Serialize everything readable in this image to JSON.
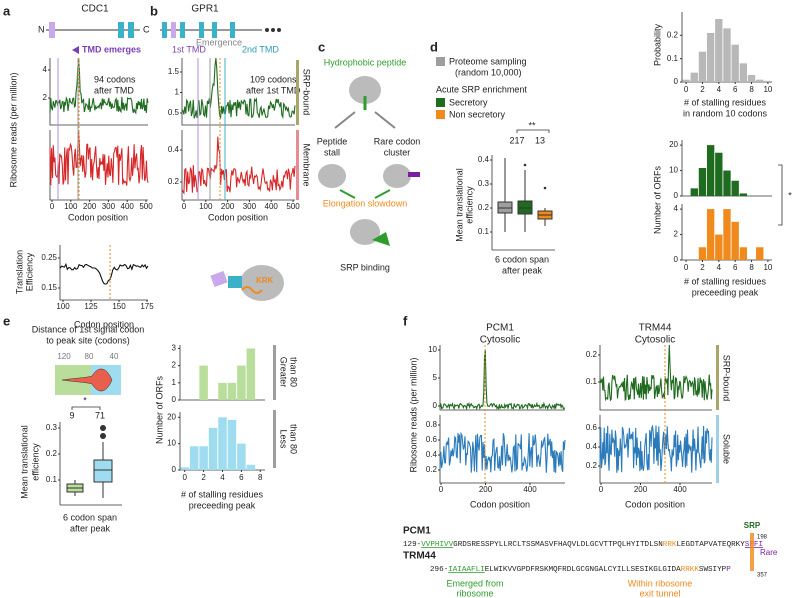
{
  "figure": {
    "a": {
      "label": "a",
      "gene": "CDC1",
      "n": "N",
      "c": "C",
      "arrow": "TMD emerges",
      "note": [
        "94 codons",
        "after TMD"
      ],
      "y_label": "Ribosome reads (per million)",
      "reads_yticks": [
        4,
        2
      ],
      "xticks": [
        0,
        100,
        200,
        300,
        400,
        500
      ],
      "x_label": "Codon position",
      "te_label": [
        "Translation",
        "Efficiency"
      ],
      "te_yticks": [
        0.25,
        0.15
      ],
      "te_xticks": [
        100,
        125,
        150,
        175
      ],
      "te_x_label": "Codon position"
    },
    "b": {
      "label": "b",
      "gene": "GPR1",
      "tmd1": "1st TMD",
      "emergence": "Emergence",
      "tmd2": "2nd TMD",
      "note": [
        "109 codons",
        "after 1st TMD"
      ],
      "srp_yticks": [
        1.5,
        1,
        0.5
      ],
      "mem_yticks": [
        0.4,
        0.2
      ],
      "xticks": [
        0,
        100,
        200,
        300,
        400,
        500
      ],
      "x_label": "Codon position",
      "side": [
        "SRP-bound",
        "Membrane"
      ],
      "motif": "KRK"
    },
    "c": {
      "label": "c",
      "top": "Hydrophobic peptide",
      "stall": [
        "Peptide",
        "stall"
      ],
      "rare": [
        "Rare codon",
        "cluster"
      ],
      "slow": "Elongation slowdown",
      "srp": "SRP binding"
    },
    "d": {
      "label": "d",
      "legend": [
        "Proteome sampling",
        "(random 10,000)"
      ],
      "enrich": "Acute SRP enrichment",
      "secretory": "Secretory",
      "nonsecretory": "Non secretory",
      "box_yticks": [
        0.4,
        0.3,
        0.2,
        0.1
      ],
      "box_ylabel": [
        "Mean translational",
        "efficiency"
      ],
      "counts": [
        "217",
        "13"
      ],
      "sig": "**",
      "box_xlabel": [
        "6 codon span",
        "after peak"
      ],
      "prob": {
        "x": [
          0,
          1,
          2,
          3,
          4,
          5,
          6,
          7,
          8,
          9,
          10
        ],
        "values": [
          0.01,
          0.04,
          0.13,
          0.21,
          0.27,
          0.23,
          0.16,
          0.08,
          0.03,
          0.01,
          0.005
        ],
        "xlim": [
          -0.5,
          10.5
        ],
        "ylim": [
          0,
          0.3
        ],
        "yticks": [
          0.2,
          0.1,
          0
        ],
        "xticks": [
          0,
          2,
          4,
          6,
          8,
          10
        ],
        "ylabel": "Probability",
        "xlabel": [
          "# of stalling residues",
          "in random 10 codons"
        ]
      },
      "sec": {
        "x": [
          0,
          1,
          2,
          3,
          4,
          5,
          6,
          7,
          8,
          9,
          10
        ],
        "values": [
          0,
          3,
          11,
          20,
          17,
          10,
          6,
          1,
          0,
          0,
          0
        ],
        "xlim": [
          -0.5,
          10.5
        ],
        "ylim": [
          0,
          22
        ],
        "yticks": [
          20,
          10,
          0
        ]
      },
      "non": {
        "x": [
          0,
          1,
          2,
          3,
          4,
          5,
          6,
          7,
          8,
          9,
          10
        ],
        "values": [
          0,
          0,
          1,
          4,
          2,
          4,
          3,
          1,
          0,
          1,
          0
        ],
        "xlim": [
          -0.5,
          10.5
        ],
        "ylim": [
          0,
          4.4
        ],
        "yticks": [
          4,
          2,
          0
        ],
        "xticks": [
          0,
          2,
          4,
          6,
          8,
          10
        ]
      },
      "hist_ylabel": "Number of ORFs",
      "hist_xlabel": [
        "# of stalling residues",
        "preceeding peak"
      ],
      "hist_sig": "*"
    },
    "e": {
      "label": "e",
      "title": [
        "Distance of 1st signal codon",
        "to peak site (codons)"
      ],
      "dist_ticks": [
        120,
        80,
        40
      ],
      "counts": [
        "9",
        "71"
      ],
      "sig": "*",
      "box_yticks": [
        0.3,
        0.2,
        0.1
      ],
      "box_ylabel": [
        "Mean translational",
        "efficiency"
      ],
      "box_xlabel": [
        "6 codon span",
        "after peak"
      ],
      "greater": {
        "x": [
          1,
          2,
          3,
          4,
          5,
          6,
          7
        ],
        "values": [
          0,
          2,
          0,
          1,
          1,
          2,
          3
        ],
        "xlim": [
          -0.5,
          8.5
        ],
        "ylim": [
          0,
          3.2
        ],
        "yticks": [
          3,
          2,
          1,
          0
        ]
      },
      "less": {
        "x": [
          0,
          1,
          2,
          3,
          4,
          5,
          6,
          7
        ],
        "values": [
          1,
          9,
          9,
          16,
          20,
          19,
          10,
          2
        ],
        "xlim": [
          -0.5,
          8.5
        ],
        "ylim": [
          0,
          22
        ],
        "yticks": [
          20,
          10,
          0
        ],
        "xticks": [
          0,
          2,
          4,
          6,
          8
        ]
      },
      "hist_ylabel": "Number of ORFs",
      "hist_xlabel": [
        "# of stalling residues",
        "preceeding peak"
      ],
      "side_greater": [
        "Greater",
        "than 80"
      ],
      "side_less": [
        "Less",
        "than 80"
      ]
    },
    "f": {
      "label": "f",
      "pcm1": [
        "PCM1",
        "Cytosolic"
      ],
      "trm44": [
        "TRM44",
        "Cytosolic"
      ],
      "y_label": "Ribosome reads (per million)",
      "pcm1_srp_yticks": [
        10,
        5,
        0
      ],
      "pcm1_sol_yticks": [
        0.8,
        0.6,
        0.4,
        0.2
      ],
      "trm44_srp_yticks": [
        0.2,
        0.1
      ],
      "trm44_sol_yticks": [
        0.6,
        0.4,
        0.2
      ],
      "xticks": [
        0,
        200,
        400
      ],
      "x_label": "Codon position",
      "side": [
        "SRP-bound",
        "Soluble"
      ],
      "seq_names": [
        "PCM1",
        "TRM44"
      ],
      "pcm1_seq": [
        "129-",
        "VVPHIVV",
        "GRDSRESSPYLLRCLTSSMASVFHAQVLDLGCVTTPQLHYITDLSN",
        "RRK",
        "LEGDTAPVATEQRKY",
        "SFFI"
      ],
      "trm44_seq": [
        "296-",
        "IAIAAFLI",
        "ELWIKVVGPDFRSKMQFRDLGCGNGALCYILLSESIKGLGIDA",
        "RRKK",
        "SWSIYP",
        "P"
      ],
      "srp": "SRP",
      "pos1": "198",
      "rare": "Rare",
      "pos2": "357",
      "emerged": [
        "Emerged from",
        "ribosome"
      ],
      "tunnel": [
        "Within ribosome",
        "exit tunnel"
      ]
    }
  }
}
